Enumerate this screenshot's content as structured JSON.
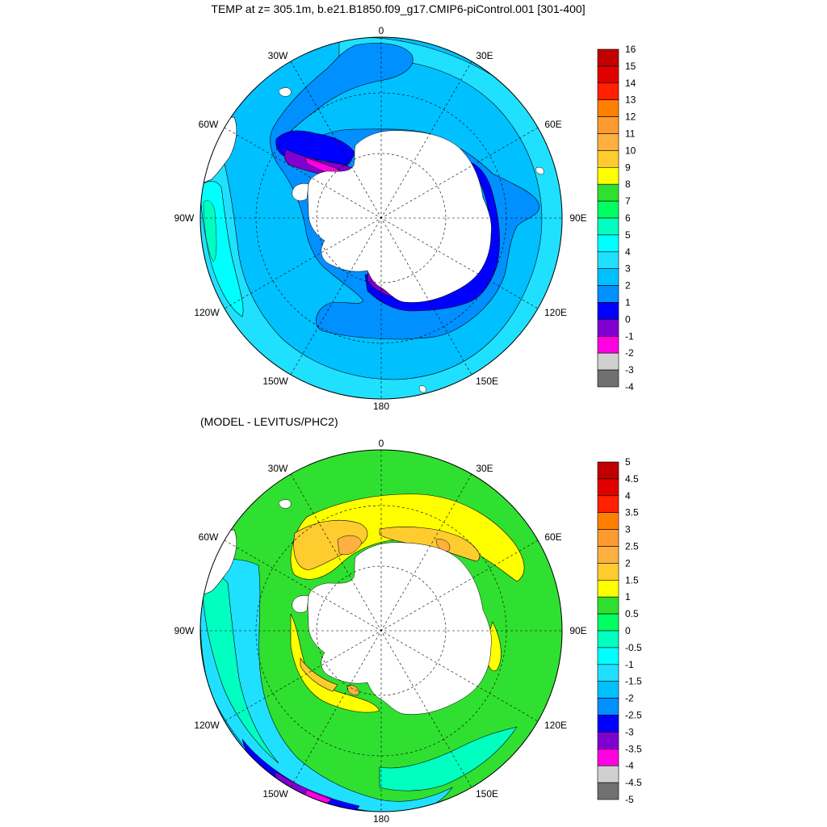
{
  "panels": [
    {
      "title": "TEMP at z= 305.1m, b.e21.B1850.f09_g17.CMIP6-piControl.001 [301-400]",
      "lon_labels": [
        "0",
        "30E",
        "60E",
        "90E",
        "120E",
        "150E",
        "180",
        "150W",
        "120W",
        "90W",
        "60W",
        "30W"
      ],
      "colorbar": {
        "labels": [
          "16",
          "15",
          "14",
          "13",
          "12",
          "11",
          "10",
          "9",
          "8",
          "7",
          "6",
          "5",
          "4",
          "3",
          "2",
          "1",
          "0",
          "-1",
          "-2",
          "-3",
          "-4"
        ],
        "colors": [
          "#c00000",
          "#e00000",
          "#ff2000",
          "#ff8000",
          "#ff9a30",
          "#ffb040",
          "#ffcc30",
          "#ffff00",
          "#30e030",
          "#00ff60",
          "#00ffc0",
          "#00ffff",
          "#20e0ff",
          "#00c0ff",
          "#0090ff",
          "#0000ff",
          "#8000d0",
          "#ff00e0",
          "#d0d0d0",
          "#707070"
        ]
      },
      "field": "temperature"
    },
    {
      "title": "(MODEL - LEVITUS/PHC2)",
      "lon_labels": [
        "0",
        "30E",
        "60E",
        "90E",
        "120E",
        "150E",
        "180",
        "150W",
        "120W",
        "90W",
        "60W",
        "30W"
      ],
      "colorbar": {
        "labels": [
          "5",
          "4.5",
          "4",
          "3.5",
          "3",
          "2.5",
          "2",
          "1.5",
          "1",
          "0.5",
          "0",
          "-0.5",
          "-1",
          "-1.5",
          "-2",
          "-2.5",
          "-3",
          "-3.5",
          "-4",
          "-4.5",
          "-5"
        ],
        "colors": [
          "#c00000",
          "#e00000",
          "#ff2000",
          "#ff8000",
          "#ff9a30",
          "#ffb040",
          "#ffcc30",
          "#ffff00",
          "#30e030",
          "#00ff60",
          "#00ffc0",
          "#00ffff",
          "#20e0ff",
          "#00c0ff",
          "#0090ff",
          "#0000ff",
          "#8000d0",
          "#ff00e0",
          "#d0d0d0",
          "#707070"
        ]
      },
      "field": "difference"
    }
  ]
}
